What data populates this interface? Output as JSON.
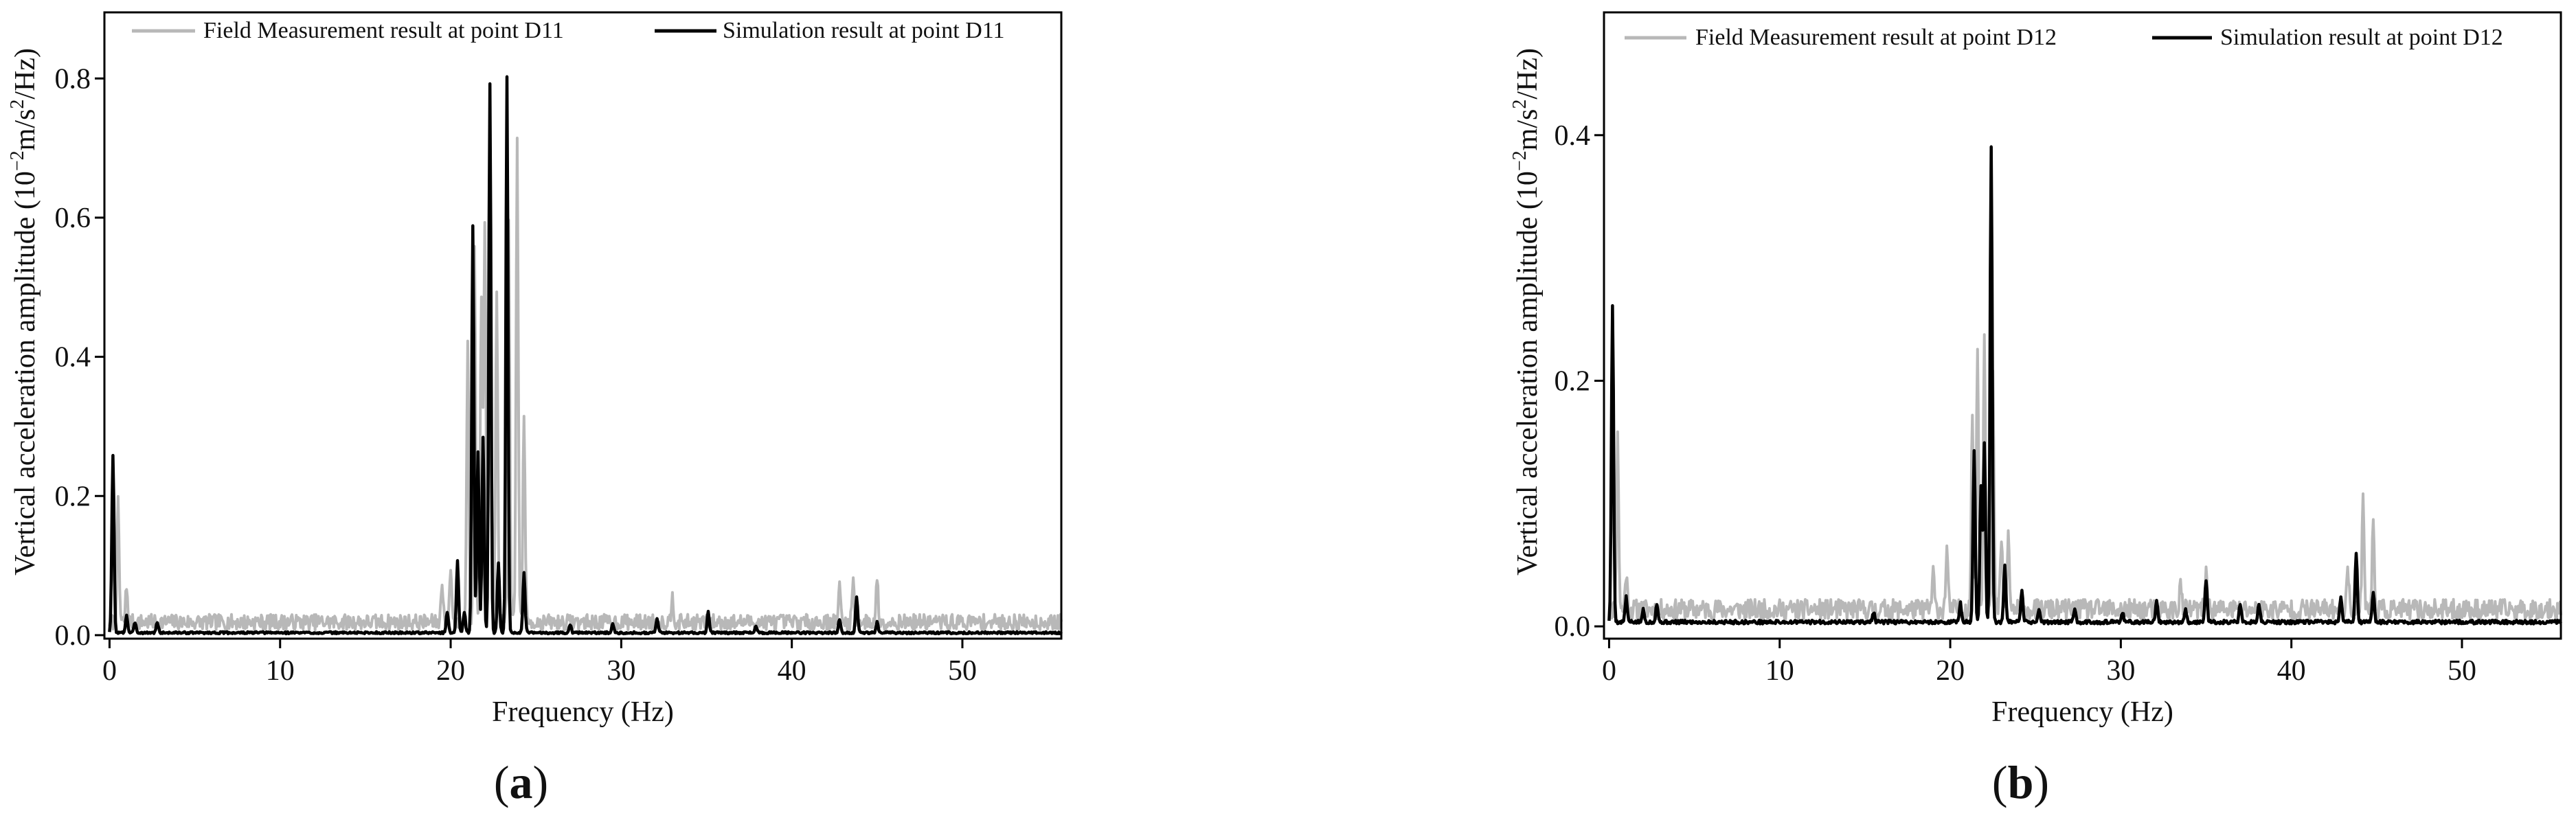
{
  "chart_data": [
    {
      "type": "line",
      "panel_label": "(a)",
      "panel_letter": "a",
      "xlabel": "Frequency (Hz)",
      "ylabel": {
        "prefix": "Vertical acceleration amplitude (10",
        "exp1": "−2",
        "mid": "m/s",
        "exp2": "2",
        "suffix": "/Hz)"
      },
      "xlim": [
        -0.3,
        55.8
      ],
      "ylim": [
        -0.005,
        0.895
      ],
      "xticks": [
        0,
        10,
        20,
        30,
        40,
        50
      ],
      "yticks": [
        0.0,
        0.2,
        0.4,
        0.6,
        0.8
      ],
      "ytick_labels": [
        "0.0",
        "0.2",
        "0.4",
        "0.6",
        "0.8"
      ],
      "legend_position": "top",
      "series": [
        {
          "name": "Field Measurement result at point D11",
          "color": "#b8b8b8",
          "peaks": [
            [
              0.5,
              0.17
            ],
            [
              1.0,
              0.05
            ],
            [
              19.5,
              0.06
            ],
            [
              20.0,
              0.08
            ],
            [
              21.0,
              0.4
            ],
            [
              21.4,
              0.55
            ],
            [
              21.8,
              0.47
            ],
            [
              22.0,
              0.58
            ],
            [
              22.3,
              0.5
            ],
            [
              22.7,
              0.47
            ],
            [
              23.4,
              0.58
            ],
            [
              23.9,
              0.69
            ],
            [
              24.3,
              0.3
            ],
            [
              33.0,
              0.04
            ],
            [
              42.8,
              0.05
            ],
            [
              43.6,
              0.06
            ],
            [
              45.0,
              0.06
            ]
          ],
          "noise": 0.03,
          "seed": 7
        },
        {
          "name": "Simulation result at point D11",
          "color": "#000000",
          "peaks": [
            [
              0.2,
              0.255
            ],
            [
              1.0,
              0.025
            ],
            [
              1.5,
              0.015
            ],
            [
              2.8,
              0.015
            ],
            [
              19.8,
              0.03
            ],
            [
              20.4,
              0.105
            ],
            [
              20.8,
              0.03
            ],
            [
              21.3,
              0.585
            ],
            [
              21.6,
              0.26
            ],
            [
              21.9,
              0.28
            ],
            [
              22.3,
              0.79
            ],
            [
              22.8,
              0.1
            ],
            [
              23.3,
              0.8
            ],
            [
              24.3,
              0.085
            ],
            [
              27.0,
              0.012
            ],
            [
              29.5,
              0.012
            ],
            [
              32.1,
              0.02
            ],
            [
              35.1,
              0.03
            ],
            [
              37.9,
              0.01
            ],
            [
              42.8,
              0.02
            ],
            [
              43.8,
              0.05
            ],
            [
              45.0,
              0.015
            ]
          ],
          "noise": 0.0,
          "seed": 3
        }
      ]
    },
    {
      "type": "line",
      "panel_label": "(b)",
      "panel_letter": "b",
      "xlabel": "Frequency (Hz)",
      "ylabel": {
        "prefix": "Vertical acceleration amplitude (10",
        "exp1": "−2",
        "mid": "m/s",
        "exp2": "2",
        "suffix": "/Hz)"
      },
      "xlim": [
        -0.3,
        55.8
      ],
      "ylim": [
        -0.01,
        0.5
      ],
      "xticks": [
        0,
        10,
        20,
        30,
        40,
        50
      ],
      "yticks": [
        0.0,
        0.2,
        0.4
      ],
      "ytick_labels": [
        "0.0",
        "0.2",
        "0.4"
      ],
      "legend_position": "top",
      "series": [
        {
          "name": "Field Measurement result at point D12",
          "color": "#b8b8b8",
          "peaks": [
            [
              0.5,
              0.14
            ],
            [
              1.0,
              0.03
            ],
            [
              19.0,
              0.03
            ],
            [
              19.8,
              0.05
            ],
            [
              21.3,
              0.16
            ],
            [
              21.6,
              0.22
            ],
            [
              22.0,
              0.23
            ],
            [
              22.5,
              0.19
            ],
            [
              23.0,
              0.06
            ],
            [
              23.4,
              0.06
            ],
            [
              33.5,
              0.02
            ],
            [
              35.0,
              0.03
            ],
            [
              43.3,
              0.04
            ],
            [
              44.2,
              0.095
            ],
            [
              44.8,
              0.07
            ]
          ],
          "noise": 0.022,
          "seed": 11
        },
        {
          "name": "Simulation result at point D12",
          "color": "#000000",
          "peaks": [
            [
              0.2,
              0.257
            ],
            [
              1.0,
              0.02
            ],
            [
              2.0,
              0.01
            ],
            [
              2.8,
              0.015
            ],
            [
              15.5,
              0.008
            ],
            [
              20.6,
              0.015
            ],
            [
              21.4,
              0.14
            ],
            [
              21.8,
              0.11
            ],
            [
              22.0,
              0.145
            ],
            [
              22.4,
              0.388
            ],
            [
              23.2,
              0.045
            ],
            [
              24.2,
              0.025
            ],
            [
              25.2,
              0.01
            ],
            [
              27.3,
              0.01
            ],
            [
              30.1,
              0.008
            ],
            [
              32.1,
              0.018
            ],
            [
              33.8,
              0.01
            ],
            [
              35.0,
              0.035
            ],
            [
              37.0,
              0.015
            ],
            [
              38.1,
              0.015
            ],
            [
              42.9,
              0.02
            ],
            [
              43.8,
              0.057
            ],
            [
              44.8,
              0.025
            ]
          ],
          "noise": 0.0,
          "seed": 5
        }
      ]
    }
  ]
}
